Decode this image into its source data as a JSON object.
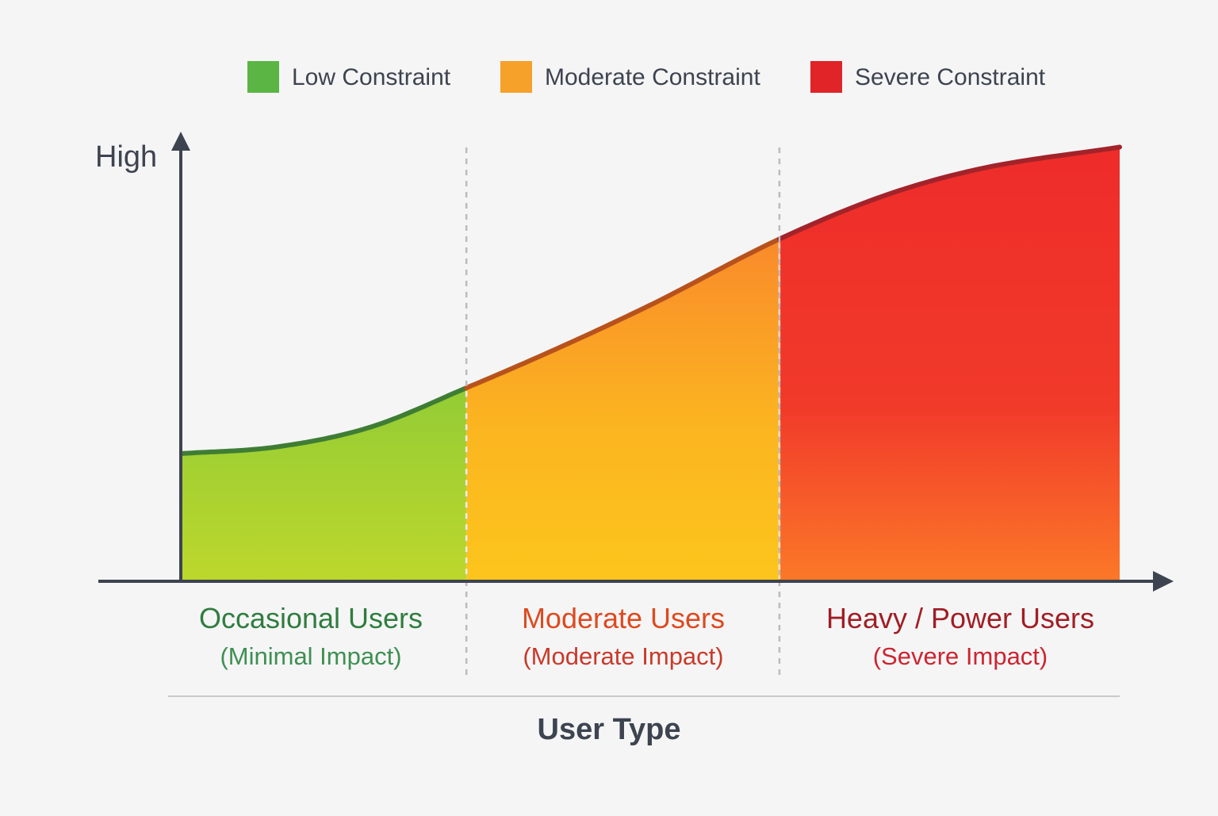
{
  "chart_data": {
    "type": "area",
    "title": "",
    "xlabel": "User Type",
    "ylabel": "",
    "y_tick_labels": [
      "High"
    ],
    "ylim": [
      0,
      100
    ],
    "xlim": [
      0,
      100
    ],
    "grid": false,
    "legend_position": "top",
    "legend": [
      {
        "label": "Low Constraint",
        "color": "#5bb544"
      },
      {
        "label": "Moderate Constraint",
        "color": "#f6a12a"
      },
      {
        "label": "Severe Constraint",
        "color": "#e02428"
      }
    ],
    "segments": [
      {
        "title": "Occasional Users",
        "subtitle": "(Minimal Impact)",
        "x_start": 0,
        "x_end": 30.3,
        "title_color": "#2f7d3e",
        "subtitle_color": "#3f8f52"
      },
      {
        "title": "Moderate Users",
        "subtitle": "(Moderate Impact)",
        "x_start": 30.3,
        "x_end": 63.7,
        "title_color": "#dd4a1f",
        "subtitle_color": "#c93a2a"
      },
      {
        "title": "Heavy / Power Users",
        "subtitle": "(Severe Impact)",
        "x_start": 63.7,
        "x_end": 100,
        "title_color": "#a01e24",
        "subtitle_color": "#cc2530"
      }
    ],
    "curve": {
      "x": [
        0,
        10,
        20,
        30.3,
        40,
        50,
        63.7,
        75,
        85,
        100
      ],
      "y": [
        29,
        30.5,
        35,
        44,
        53,
        63,
        78,
        88,
        94,
        99
      ]
    }
  }
}
